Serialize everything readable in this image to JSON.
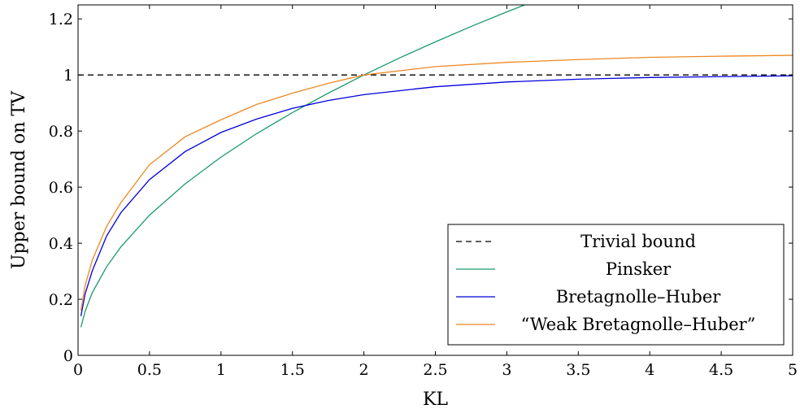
{
  "chart_data": {
    "type": "line",
    "title": "",
    "xlabel": "KL",
    "ylabel": "Upper bound on TV",
    "xlim": [
      0,
      5
    ],
    "ylim": [
      0,
      1.25
    ],
    "x_ticks": [
      0,
      0.5,
      1,
      1.5,
      2,
      2.5,
      3,
      3.5,
      4,
      4.5,
      5
    ],
    "x_tick_labels": [
      "0",
      "0.5",
      "1",
      "1.5",
      "2",
      "2.5",
      "3",
      "3.5",
      "4",
      "4.5",
      "5"
    ],
    "y_ticks": [
      0,
      0.2,
      0.4,
      0.6,
      0.8,
      1,
      1.2
    ],
    "y_tick_labels": [
      "0",
      "0.2",
      "0.4",
      "0.6",
      "0.8",
      "1",
      "1.2"
    ],
    "grid": false,
    "legend_position": "bottom-right",
    "series": [
      {
        "name": "Trivial bound",
        "color": "#000000",
        "style": "dashed",
        "x": [
          0,
          5
        ],
        "y": [
          1,
          1
        ]
      },
      {
        "name": "Pinsker",
        "color": "#1a9a6b",
        "style": "solid",
        "x": [
          0.02,
          0.05,
          0.1,
          0.2,
          0.3,
          0.5,
          0.75,
          1,
          1.25,
          1.5,
          1.75,
          2,
          2.25,
          2.5,
          2.75,
          3,
          3.125
        ],
        "y": [
          0.1,
          0.158,
          0.224,
          0.316,
          0.387,
          0.5,
          0.612,
          0.707,
          0.791,
          0.866,
          0.935,
          1,
          1.061,
          1.118,
          1.173,
          1.225,
          1.25
        ]
      },
      {
        "name": "Bretagnolle–Huber",
        "color": "#0000dd",
        "style": "solid",
        "x": [
          0.02,
          0.05,
          0.1,
          0.2,
          0.3,
          0.5,
          0.75,
          1,
          1.25,
          1.5,
          1.75,
          2,
          2.5,
          3,
          3.5,
          4,
          4.5,
          5
        ],
        "y": [
          0.14,
          0.22,
          0.302,
          0.426,
          0.509,
          0.627,
          0.727,
          0.795,
          0.843,
          0.881,
          0.909,
          0.93,
          0.958,
          0.975,
          0.985,
          0.991,
          0.994,
          0.997
        ]
      },
      {
        "name": "“Weak Bretagnolle–Huber”",
        "color": "#ee8822",
        "style": "solid",
        "x": [
          0.02,
          0.05,
          0.1,
          0.2,
          0.3,
          0.5,
          0.75,
          1,
          1.25,
          1.5,
          1.75,
          2,
          2.5,
          3,
          3.5,
          4,
          4.5,
          5
        ],
        "y": [
          0.16,
          0.25,
          0.34,
          0.46,
          0.545,
          0.68,
          0.78,
          0.84,
          0.895,
          0.935,
          0.97,
          1.0,
          1.03,
          1.045,
          1.055,
          1.063,
          1.067,
          1.07
        ]
      }
    ]
  }
}
